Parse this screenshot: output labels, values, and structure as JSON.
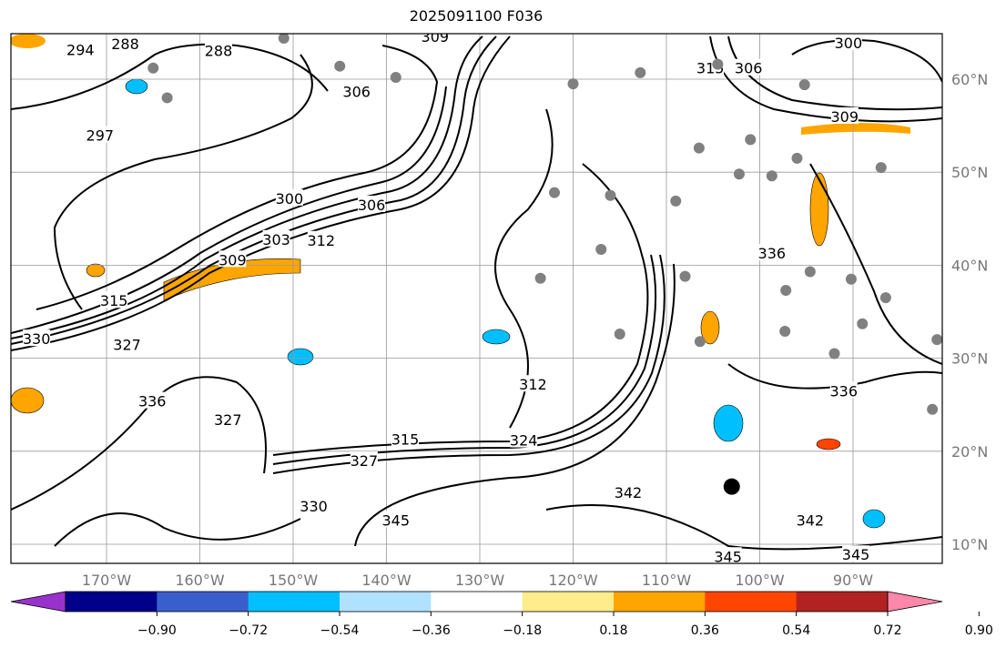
{
  "title": "2025091100 F036",
  "map": {
    "lon_range": [
      -180,
      -80
    ],
    "lat_range": [
      5,
      65
    ],
    "lon_ticks": [
      {
        "value": -170,
        "label": "170°W"
      },
      {
        "value": -160,
        "label": "160°W"
      },
      {
        "value": -150,
        "label": "150°W"
      },
      {
        "value": -140,
        "label": "140°W"
      },
      {
        "value": -130,
        "label": "130°W"
      },
      {
        "value": -120,
        "label": "120°W"
      },
      {
        "value": -110,
        "label": "110°W"
      },
      {
        "value": -100,
        "label": "100°W"
      },
      {
        "value": -90,
        "label": "90°W"
      }
    ],
    "lat_ticks": [
      {
        "value": 60,
        "label": "60°N"
      },
      {
        "value": 50,
        "label": "50°N"
      },
      {
        "value": 40,
        "label": "40°N"
      },
      {
        "value": 30,
        "label": "30°N"
      },
      {
        "value": 20,
        "label": "20°N"
      },
      {
        "value": 10,
        "label": "10°N"
      }
    ],
    "contour_labels": [
      {
        "text": "294",
        "lon": -172.8,
        "lat": 63.2
      },
      {
        "text": "288",
        "lon": -168,
        "lat": 63.8
      },
      {
        "text": "288",
        "lon": -158,
        "lat": 63.1
      },
      {
        "text": "309",
        "lon": -134.8,
        "lat": 64.6
      },
      {
        "text": "300",
        "lon": -90.5,
        "lat": 63.9
      },
      {
        "text": "306",
        "lon": -101.2,
        "lat": 61.2
      },
      {
        "text": "315",
        "lon": -105.3,
        "lat": 61.2
      },
      {
        "text": "297",
        "lon": -170.7,
        "lat": 54
      },
      {
        "text": "306",
        "lon": -143.2,
        "lat": 58.7
      },
      {
        "text": "309",
        "lon": -90.9,
        "lat": 56
      },
      {
        "text": "300",
        "lon": -150.4,
        "lat": 47.2
      },
      {
        "text": "306",
        "lon": -141.6,
        "lat": 46.5
      },
      {
        "text": "303",
        "lon": -151.8,
        "lat": 42.8
      },
      {
        "text": "312",
        "lon": -147,
        "lat": 42.7
      },
      {
        "text": "309",
        "lon": -156.5,
        "lat": 40.6
      },
      {
        "text": "315",
        "lon": -169.2,
        "lat": 36.2
      },
      {
        "text": "336",
        "lon": -98.7,
        "lat": 41.3
      },
      {
        "text": "312",
        "lon": -124.3,
        "lat": 27.2
      },
      {
        "text": "336",
        "lon": -165.1,
        "lat": 25.4
      },
      {
        "text": "327",
        "lon": -157,
        "lat": 23.4
      },
      {
        "text": "315",
        "lon": -138,
        "lat": 21.3
      },
      {
        "text": "327",
        "lon": -142.4,
        "lat": 19
      },
      {
        "text": "324",
        "lon": -125.3,
        "lat": 21.2
      },
      {
        "text": "342",
        "lon": -114.1,
        "lat": 15.6
      },
      {
        "text": "330",
        "lon": -147.8,
        "lat": 14.1
      },
      {
        "text": "345",
        "lon": -139,
        "lat": 12.6
      },
      {
        "text": "342",
        "lon": -94.6,
        "lat": 12.6
      },
      {
        "text": "345",
        "lon": -89.7,
        "lat": 8.9
      },
      {
        "text": "345",
        "lon": -103.4,
        "lat": 8.7
      },
      {
        "text": "330",
        "lon": -177.5,
        "lat": 32.1
      },
      {
        "text": "327",
        "lon": -167.8,
        "lat": 31.5
      },
      {
        "text": "336",
        "lon": -91,
        "lat": 26.5
      }
    ],
    "stations": [
      {
        "lon": -165,
        "lat": 61.2
      },
      {
        "lon": -163.5,
        "lat": 58
      },
      {
        "lon": -151,
        "lat": 64.4
      },
      {
        "lon": -145,
        "lat": 61.4
      },
      {
        "lon": -139,
        "lat": 60.2
      },
      {
        "lon": -120,
        "lat": 59.5
      },
      {
        "lon": -112.8,
        "lat": 60.7
      },
      {
        "lon": -104.5,
        "lat": 61.6
      },
      {
        "lon": -95.2,
        "lat": 59.4
      },
      {
        "lon": -106.5,
        "lat": 52.6
      },
      {
        "lon": -101,
        "lat": 53.5
      },
      {
        "lon": -96,
        "lat": 51.5
      },
      {
        "lon": -87,
        "lat": 50.5
      },
      {
        "lon": -98.7,
        "lat": 49.6
      },
      {
        "lon": -102.2,
        "lat": 49.8
      },
      {
        "lon": -109,
        "lat": 46.9
      },
      {
        "lon": -116,
        "lat": 47.5
      },
      {
        "lon": -122,
        "lat": 47.8
      },
      {
        "lon": -117,
        "lat": 41.7
      },
      {
        "lon": -108,
        "lat": 38.8
      },
      {
        "lon": -97.2,
        "lat": 37.3
      },
      {
        "lon": -94.6,
        "lat": 39.3
      },
      {
        "lon": -90.2,
        "lat": 38.5
      },
      {
        "lon": -86.5,
        "lat": 36.5
      },
      {
        "lon": -97.3,
        "lat": 32.9
      },
      {
        "lon": -92,
        "lat": 30.5
      },
      {
        "lon": -89,
        "lat": 33.7
      },
      {
        "lon": -106.4,
        "lat": 31.8
      },
      {
        "lon": -115,
        "lat": 32.6
      },
      {
        "lon": -123.5,
        "lat": 38.6
      },
      {
        "lon": -81,
        "lat": 32
      },
      {
        "lon": -81.5,
        "lat": 24.5
      }
    ],
    "markers": [
      {
        "lon": -103,
        "lat": 16.2
      }
    ]
  },
  "colorbar": {
    "ticks": [
      "−0.90",
      "−0.72",
      "−0.54",
      "−0.36",
      "−0.18",
      "0.18",
      "0.36",
      "0.54",
      "0.72",
      "0.90"
    ],
    "colors": [
      "#9932cc",
      "#00008b",
      "#3a5fcd",
      "#00bfff",
      "#b0e2ff",
      "#ffffff",
      "#ffec8b",
      "#ffa500",
      "#ff4500",
      "#b22222",
      "#ff88aa"
    ]
  }
}
